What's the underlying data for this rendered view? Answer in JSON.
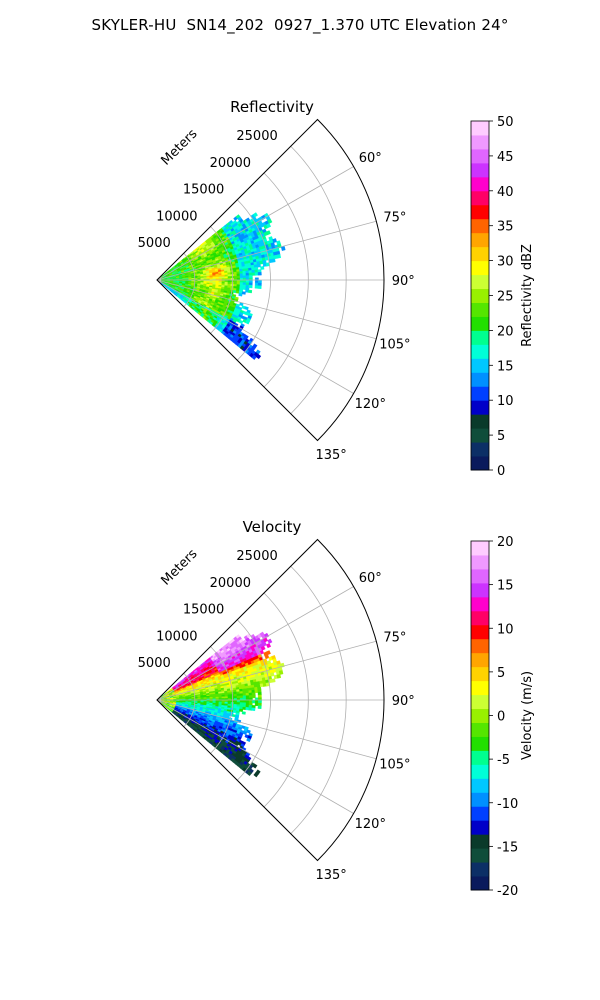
{
  "figure_title": "SKYLER-HU  SN14_202  0927_1.370 UTC Elevation 24°",
  "chart_data": [
    {
      "type": "polar-ppi",
      "title": "Reflectivity",
      "range_axis_label": "Meters",
      "range_ticks": [
        "5000",
        "10000",
        "15000",
        "20000",
        "25000"
      ],
      "range_tick_values": [
        5000,
        10000,
        15000,
        20000,
        25000
      ],
      "rlim": [
        0,
        30000
      ],
      "azimuth_range_deg": [
        45,
        135
      ],
      "azimuth_ticks": [
        "60°",
        "75°",
        "90°",
        "105°",
        "120°",
        "135°"
      ],
      "azimuth_tick_values": [
        60,
        75,
        90,
        105,
        120,
        135
      ],
      "grid": true,
      "colorbar": {
        "label": "Reflectivity dBZ",
        "min": 0,
        "max": 50,
        "ticks": [
          "0",
          "5",
          "10",
          "15",
          "20",
          "25",
          "30",
          "35",
          "40",
          "45",
          "50"
        ],
        "tick_values": [
          0,
          5,
          10,
          15,
          20,
          25,
          30,
          35,
          40,
          45,
          50
        ],
        "colors": [
          "#0a1a5c",
          "#0c2f66",
          "#0f4d3a",
          "#0a3a2a",
          "#0000c8",
          "#0040ff",
          "#0090ff",
          "#00c8ff",
          "#00ffd8",
          "#00ff90",
          "#22e000",
          "#55e600",
          "#99f000",
          "#ccff33",
          "#ffff00",
          "#ffd200",
          "#ffa500",
          "#ff6400",
          "#ff0000",
          "#ff0066",
          "#ff00cc",
          "#cc33ff",
          "#e066ff",
          "#f099ff",
          "#ffccff"
        ]
      }
    },
    {
      "type": "polar-ppi",
      "title": "Velocity",
      "range_axis_label": "Meters",
      "range_ticks": [
        "5000",
        "10000",
        "15000",
        "20000",
        "25000"
      ],
      "range_tick_values": [
        5000,
        10000,
        15000,
        20000,
        25000
      ],
      "rlim": [
        0,
        30000
      ],
      "azimuth_range_deg": [
        45,
        135
      ],
      "azimuth_ticks": [
        "60°",
        "75°",
        "90°",
        "105°",
        "120°",
        "135°"
      ],
      "azimuth_tick_values": [
        60,
        75,
        90,
        105,
        120,
        135
      ],
      "grid": true,
      "colorbar": {
        "label": "Velocity (m/s)",
        "min": -20,
        "max": 20,
        "ticks": [
          "-20",
          "-15",
          "-10",
          "-5",
          "0",
          "5",
          "10",
          "15",
          "20"
        ],
        "tick_values": [
          -20,
          -15,
          -10,
          -5,
          0,
          5,
          10,
          15,
          20
        ],
        "colors": [
          "#0a1a5c",
          "#0c2f66",
          "#0f4d3a",
          "#0a3a2a",
          "#0000c8",
          "#0040ff",
          "#0090ff",
          "#00c8ff",
          "#00ffd8",
          "#00ff90",
          "#22e000",
          "#55e600",
          "#99f000",
          "#ccff33",
          "#ffff00",
          "#ffd200",
          "#ffa500",
          "#ff6400",
          "#ff0000",
          "#ff0066",
          "#ff00cc",
          "#cc33ff",
          "#e066ff",
          "#f099ff",
          "#ffccff"
        ]
      }
    }
  ]
}
